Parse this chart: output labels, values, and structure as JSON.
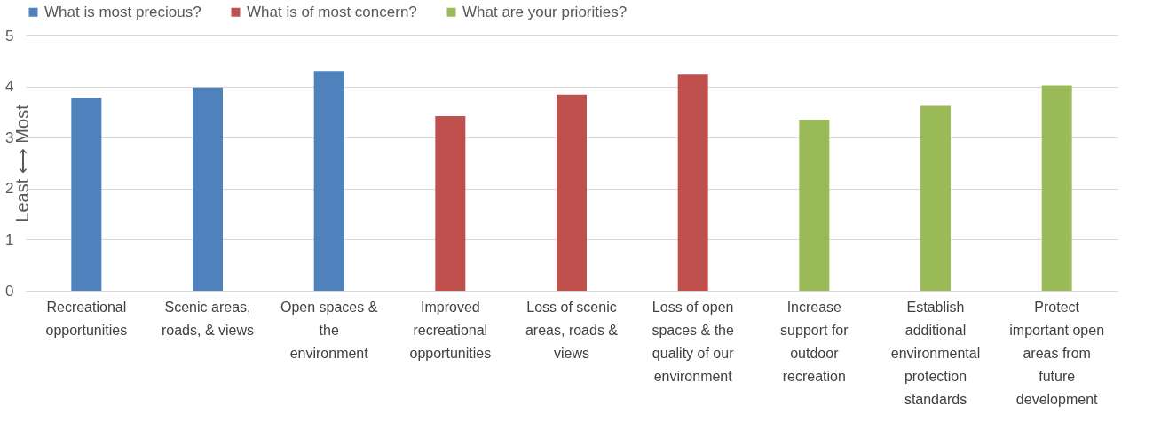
{
  "chart_data": {
    "type": "bar",
    "ylabel": "Least ⟷ Most",
    "categories": [
      "Recreational opportunities",
      "Scenic areas, roads, & views",
      "Open spaces & the environment",
      "Improved recreational opportunities",
      "Loss of scenic areas, roads & views",
      "Loss of open spaces & the quality of our environment",
      "Increase support for outdoor recreation",
      "Establish additional environmental protection standards",
      "Protect important open areas from future development"
    ],
    "series": [
      {
        "name": "What is most precious?",
        "color": "#4f81bd",
        "values": [
          3.78,
          3.98,
          4.3,
          null,
          null,
          null,
          null,
          null,
          null
        ]
      },
      {
        "name": "What is of most concern?",
        "color": "#c0504d",
        "values": [
          null,
          null,
          null,
          3.42,
          3.84,
          4.23,
          null,
          null,
          null
        ]
      },
      {
        "name": "What are your priorities?",
        "color": "#9bbb59",
        "values": [
          null,
          null,
          null,
          null,
          null,
          null,
          3.35,
          3.62,
          4.02
        ]
      }
    ],
    "ylim": [
      0,
      5
    ],
    "yticks": [
      0,
      1,
      2,
      3,
      4,
      5
    ],
    "grid": "y",
    "legend": "top"
  }
}
